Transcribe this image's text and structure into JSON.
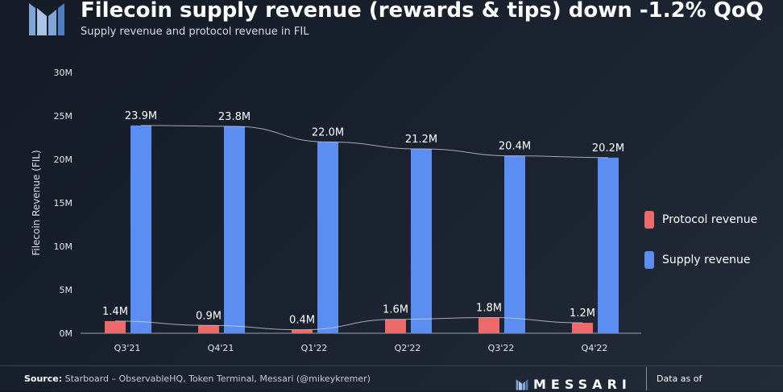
{
  "header": {
    "title": "Filecoin supply revenue (rewards & tips) down -1.2% QoQ",
    "subtitle": "Supply revenue and protocol revenue in FIL"
  },
  "colors": {
    "supply": "#5b8ef0",
    "protocol": "#ec6a6a",
    "background": "#1a2230"
  },
  "chart_data": {
    "type": "bar",
    "categories": [
      "Q3'21",
      "Q4'21",
      "Q1'22",
      "Q2'22",
      "Q3'22",
      "Q4'22"
    ],
    "series": [
      {
        "name": "Protocol revenue",
        "values": [
          1.4,
          0.9,
          0.4,
          1.6,
          1.8,
          1.2
        ],
        "labels": [
          "1.4M",
          "0.9M",
          "0.4M",
          "1.6M",
          "1.8M",
          "1.2M"
        ]
      },
      {
        "name": "Supply revenue",
        "values": [
          23.9,
          23.8,
          22.0,
          21.2,
          20.4,
          20.2
        ],
        "labels": [
          "23.9M",
          "23.8M",
          "22.0M",
          "21.2M",
          "20.4M",
          "20.2M"
        ]
      }
    ],
    "ylabel": "Filecoin Revenue (FIL)",
    "ylim": [
      0,
      30
    ],
    "yticks": [
      "0M",
      "5M",
      "10M",
      "15M",
      "20M",
      "25M",
      "30M"
    ],
    "trendlines": true,
    "grid": false,
    "legend_position": "right"
  },
  "footer": {
    "source_label": "Source:",
    "source_text": "Starboard – ObservableHQ, Token Terminal, Messari (@mikeykremer)",
    "brand": "MESSARI",
    "data_as_of": "Data as of"
  }
}
